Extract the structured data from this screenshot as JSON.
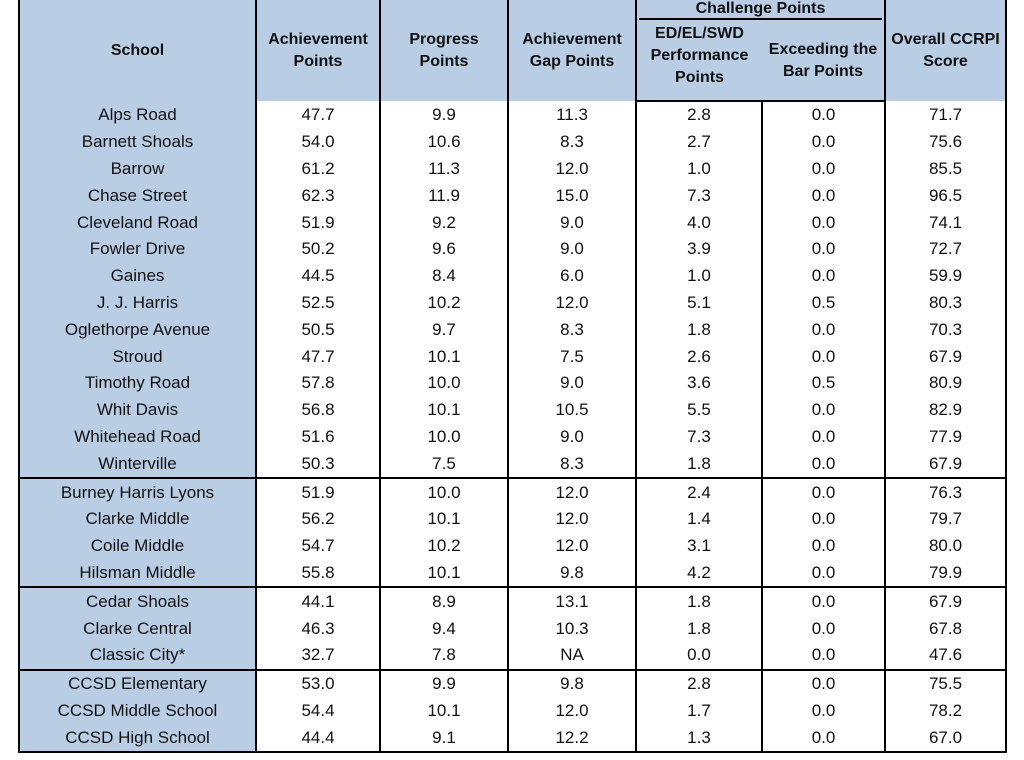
{
  "headers": {
    "school": "School",
    "achievement": "Achievement Points",
    "progress": "Progress Points",
    "gap": "Achievement Gap Points",
    "challenge": "Challenge Points",
    "ed": "ED/EL/SWD Performance Points",
    "bar": "Exceeding the Bar Points",
    "overall": "Overall CCRPI Score"
  },
  "groups": [
    [
      [
        "Alps Road",
        "47.7",
        "9.9",
        "11.3",
        "2.8",
        "0.0",
        "71.7"
      ],
      [
        "Barnett Shoals",
        "54.0",
        "10.6",
        "8.3",
        "2.7",
        "0.0",
        "75.6"
      ],
      [
        "Barrow",
        "61.2",
        "11.3",
        "12.0",
        "1.0",
        "0.0",
        "85.5"
      ],
      [
        "Chase Street",
        "62.3",
        "11.9",
        "15.0",
        "7.3",
        "0.0",
        "96.5"
      ],
      [
        "Cleveland Road",
        "51.9",
        "9.2",
        "9.0",
        "4.0",
        "0.0",
        "74.1"
      ],
      [
        "Fowler Drive",
        "50.2",
        "9.6",
        "9.0",
        "3.9",
        "0.0",
        "72.7"
      ],
      [
        "Gaines",
        "44.5",
        "8.4",
        "6.0",
        "1.0",
        "0.0",
        "59.9"
      ],
      [
        "J. J. Harris",
        "52.5",
        "10.2",
        "12.0",
        "5.1",
        "0.5",
        "80.3"
      ],
      [
        "Oglethorpe Avenue",
        "50.5",
        "9.7",
        "8.3",
        "1.8",
        "0.0",
        "70.3"
      ],
      [
        "Stroud",
        "47.7",
        "10.1",
        "7.5",
        "2.6",
        "0.0",
        "67.9"
      ],
      [
        "Timothy Road",
        "57.8",
        "10.0",
        "9.0",
        "3.6",
        "0.5",
        "80.9"
      ],
      [
        "Whit Davis",
        "56.8",
        "10.1",
        "10.5",
        "5.5",
        "0.0",
        "82.9"
      ],
      [
        "Whitehead Road",
        "51.6",
        "10.0",
        "9.0",
        "7.3",
        "0.0",
        "77.9"
      ],
      [
        "Winterville",
        "50.3",
        "7.5",
        "8.3",
        "1.8",
        "0.0",
        "67.9"
      ]
    ],
    [
      [
        "Burney Harris Lyons",
        "51.9",
        "10.0",
        "12.0",
        "2.4",
        "0.0",
        "76.3"
      ],
      [
        "Clarke Middle",
        "56.2",
        "10.1",
        "12.0",
        "1.4",
        "0.0",
        "79.7"
      ],
      [
        "Coile Middle",
        "54.7",
        "10.2",
        "12.0",
        "3.1",
        "0.0",
        "80.0"
      ],
      [
        "Hilsman Middle",
        "55.8",
        "10.1",
        "9.8",
        "4.2",
        "0.0",
        "79.9"
      ]
    ],
    [
      [
        "Cedar Shoals",
        "44.1",
        "8.9",
        "13.1",
        "1.8",
        "0.0",
        "67.9"
      ],
      [
        "Clarke Central",
        "46.3",
        "9.4",
        "10.3",
        "1.8",
        "0.0",
        "67.8"
      ],
      [
        "Classic City*",
        "32.7",
        "7.8",
        "NA",
        "0.0",
        "0.0",
        "47.6"
      ]
    ],
    [
      [
        "CCSD Elementary",
        "53.0",
        "9.9",
        "9.8",
        "2.8",
        "0.0",
        "75.5"
      ],
      [
        "CCSD Middle School",
        "54.4",
        "10.1",
        "12.0",
        "1.7",
        "0.0",
        "78.2"
      ],
      [
        "CCSD High School",
        "44.4",
        "9.1",
        "12.2",
        "1.3",
        "0.0",
        "67.0"
      ]
    ]
  ]
}
